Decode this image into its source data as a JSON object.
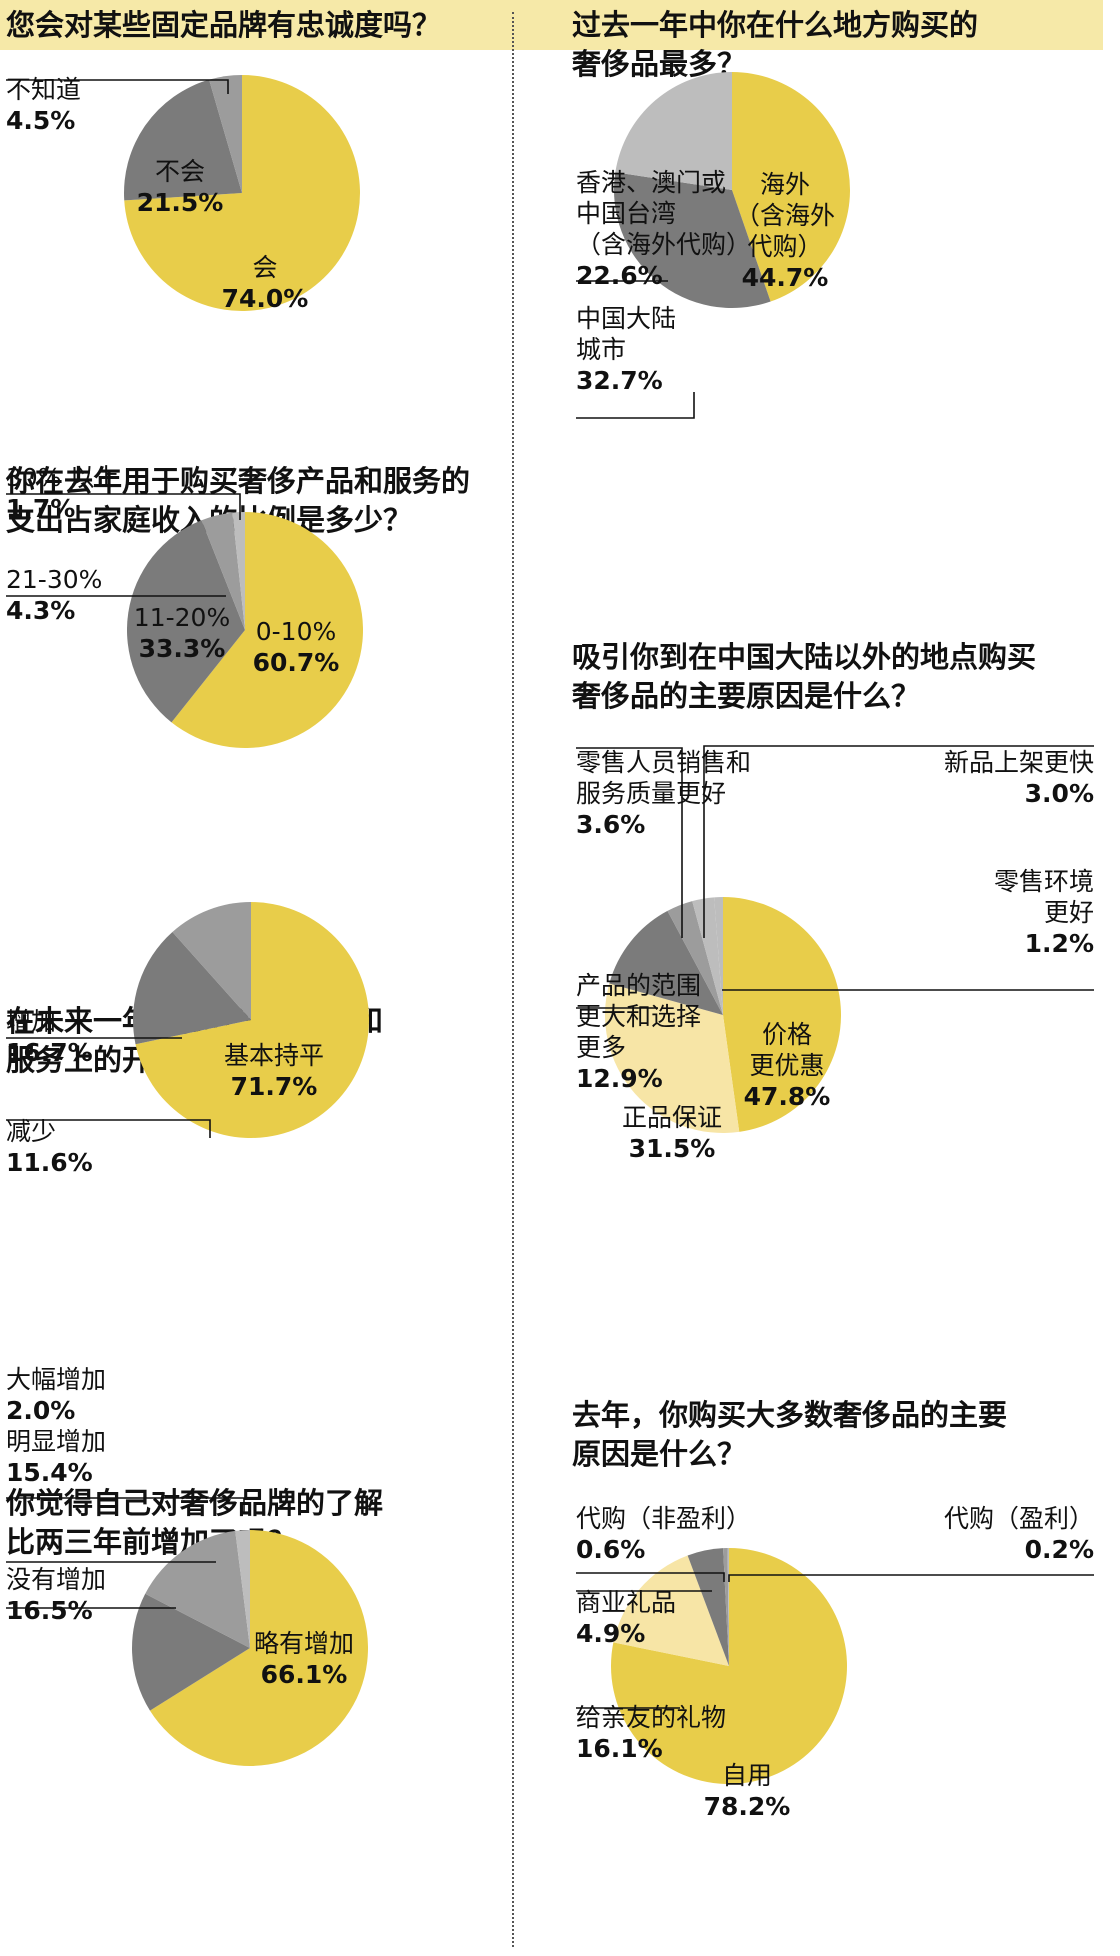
{
  "colors": {
    "yellow": "#e8cd4a",
    "light_yellow": "#f7e5a6",
    "dark_gray": "#7b7b7b",
    "mid_gray": "#9c9c9c",
    "light_gray": "#bdbdbd",
    "banner": "#f6e9a8"
  },
  "chart_data": [
    {
      "type": "pie",
      "title": "您会对某些固定品牌有忠诚度吗？",
      "slices": [
        {
          "label": "会",
          "value": 74.0
        },
        {
          "label": "不会",
          "value": 21.5
        },
        {
          "label": "不知道",
          "value": 4.5
        }
      ]
    },
    {
      "type": "pie",
      "title": "你在去年用于购买奢侈产品和服务的\n支出占家庭收入的比例是多少？",
      "slices": [
        {
          "label": "0-10%",
          "value": 60.7
        },
        {
          "label": "11-20%",
          "value": 33.3
        },
        {
          "label": "21-30%",
          "value": 4.3
        },
        {
          "label": "30% 以上",
          "value": 1.7
        }
      ]
    },
    {
      "type": "pie",
      "title": "在未来一年，你在奢侈产品和\n服务上的开支会：",
      "slices": [
        {
          "label": "基本持平",
          "value": 71.7
        },
        {
          "label": "增加",
          "value": 16.7
        },
        {
          "label": "减少",
          "value": 11.6
        }
      ]
    },
    {
      "type": "pie",
      "title": "你觉得自己对奢侈品牌的了解\n比两三年前增加了吗？",
      "slices": [
        {
          "label": "略有增加",
          "value": 66.1
        },
        {
          "label": "没有增加",
          "value": 16.5
        },
        {
          "label": "明显增加",
          "value": 15.4
        },
        {
          "label": "大幅增加",
          "value": 2.0
        }
      ]
    },
    {
      "type": "pie",
      "title": "过去一年中你在什么地方购买的\n奢侈品最多？",
      "slices": [
        {
          "label": "海外\n（含海外\n代购）",
          "value": 44.7
        },
        {
          "label": "中国大陆\n城市",
          "value": 32.7
        },
        {
          "label": "香港、澳门或\n中国台湾\n（含海外代购）",
          "value": 22.6
        }
      ]
    },
    {
      "type": "pie",
      "title": "吸引你到在中国大陆以外的地点购买\n奢侈品的主要原因是什么？",
      "slices": [
        {
          "label": "价格\n更优惠",
          "value": 47.8
        },
        {
          "label": "正品保证",
          "value": 31.5
        },
        {
          "label": "产品的范围\n更大和选择\n更多",
          "value": 12.9
        },
        {
          "label": "零售人员销售和\n服务质量更好",
          "value": 3.6
        },
        {
          "label": "新品上架更快",
          "value": 3.0
        },
        {
          "label": "零售环境\n更好",
          "value": 1.2
        }
      ]
    },
    {
      "type": "pie",
      "title": "去年，你购买大多数奢侈品的主要\n原因是什么？",
      "slices": [
        {
          "label": "自用",
          "value": 78.2
        },
        {
          "label": "给亲友的礼物",
          "value": 16.1
        },
        {
          "label": "商业礼品",
          "value": 4.9
        },
        {
          "label": "代购（非盈利）",
          "value": 0.6
        },
        {
          "label": "代购（盈利）",
          "value": 0.2
        }
      ]
    }
  ]
}
